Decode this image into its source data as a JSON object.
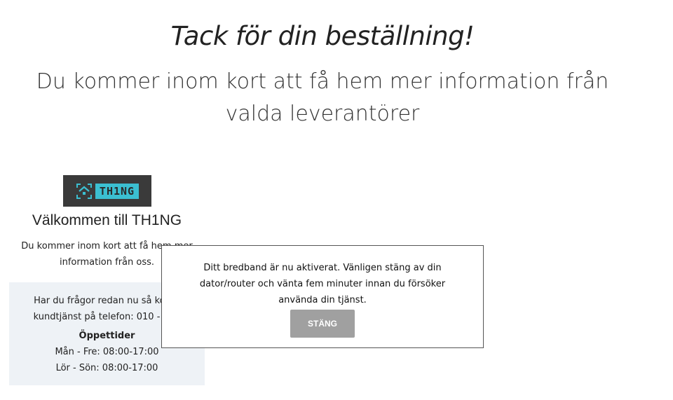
{
  "header": {
    "title": "Tack för din beställning!",
    "subtitle": "Du kommer inom kort att få hem mer information från valda leverantörer"
  },
  "provider": {
    "logo_text": "TH1NG",
    "logo_color": "#3bbfd1",
    "welcome": "Välkommen till TH1NG",
    "intro": "Du kommer inom kort att få hem mer information från oss.",
    "contact_line1": "Har du frågor redan nu så konta",
    "contact_line2": "kundtjänst på telefon: 010 - 252",
    "hours_title": "Öppettider",
    "hours_weekday": "Mån - Fre: 08:00-17:00",
    "hours_weekend": "Lör - Sön: 08:00-17:00"
  },
  "modal": {
    "message": "Ditt bredband är nu aktiverat. Vänligen stäng av din dator/router och vänta fem minuter innan du försöker använda din tjänst.",
    "close_label": "STÄNG"
  }
}
